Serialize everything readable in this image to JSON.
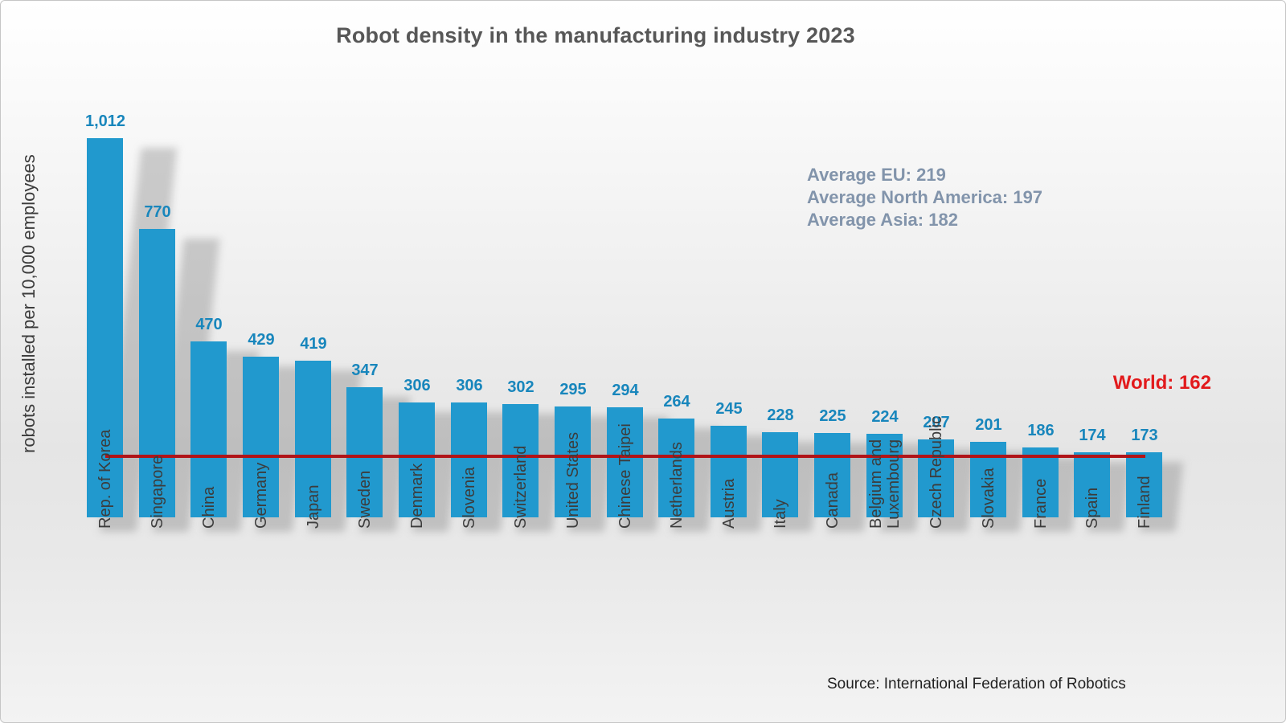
{
  "title": "Robot density in the manufacturing industry 2023",
  "y_axis_label": "robots installed per 10,000 employees",
  "averages": {
    "eu": "Average EU: 219",
    "north_america": "Average North America: 197",
    "asia": "Average Asia: 182"
  },
  "world_label": "World: 162",
  "source": "Source: International Federation of Robotics",
  "colors": {
    "bar": "#2199CE",
    "value_label": "#1886BC",
    "world_line": "#B11418",
    "world_text": "#E21A1C",
    "averages_text": "#8294AB",
    "title_text": "#575757",
    "axis_text": "#3C3C3C"
  },
  "chart_data": {
    "type": "bar",
    "title": "Robot density in the manufacturing industry 2023",
    "ylabel": "robots installed per 10,000 employees",
    "categories": [
      "Rep. of Korea",
      "Singapore",
      "China",
      "Germany",
      "Japan",
      "Sweden",
      "Denmark",
      "Slovenia",
      "Switzerland",
      "United States",
      "Chinese Taipei",
      "Netherlands",
      "Austria",
      "Italy",
      "Canada",
      "Belgium and\nLuxembourg",
      "Czech Republic",
      "Slovakia",
      "France",
      "Spain",
      "Finland"
    ],
    "values": [
      1012,
      770,
      470,
      429,
      419,
      347,
      306,
      306,
      302,
      295,
      294,
      264,
      245,
      228,
      225,
      224,
      207,
      201,
      186,
      174,
      173
    ],
    "value_labels": [
      "1,012",
      "770",
      "470",
      "429",
      "419",
      "347",
      "306",
      "306",
      "302",
      "295",
      "294",
      "264",
      "245",
      "228",
      "225",
      "224",
      "207",
      "201",
      "186",
      "174",
      "173"
    ],
    "reference_line": {
      "label": "World: 162",
      "value": 162
    },
    "annotations": [
      "Average EU: 219",
      "Average North America: 197",
      "Average Asia: 182"
    ],
    "ylim": [
      0,
      1050
    ],
    "grid": false,
    "legend": "none",
    "source": "Source: International Federation of Robotics"
  }
}
